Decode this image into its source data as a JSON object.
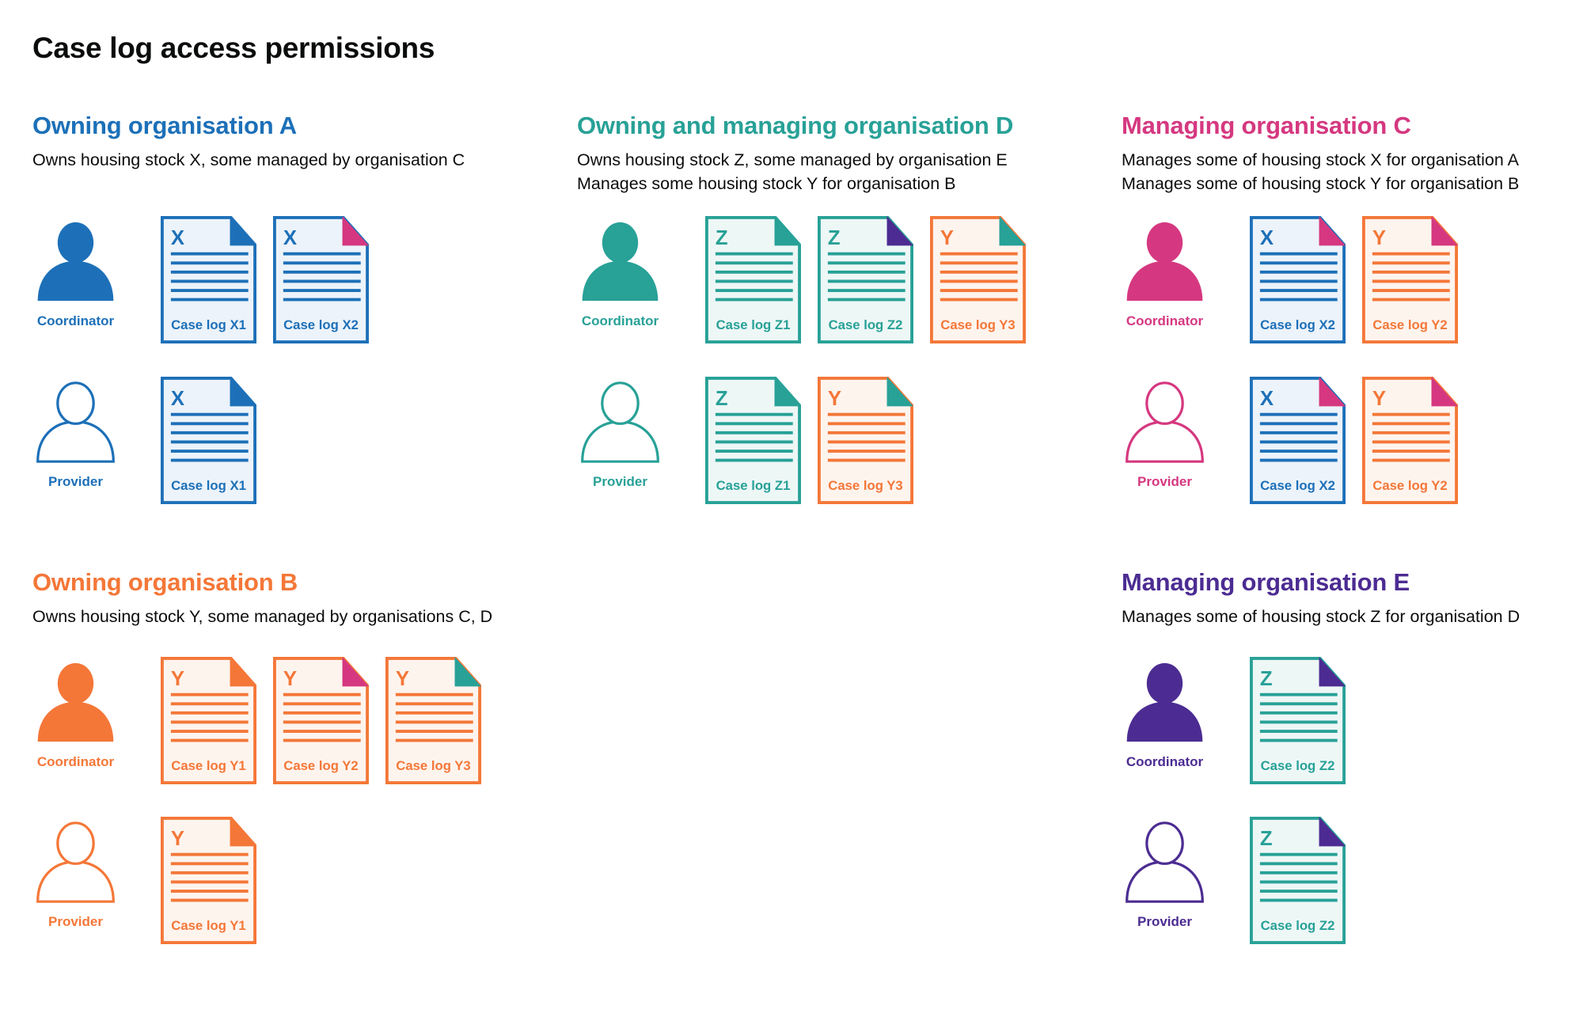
{
  "title": "Case log access permissions",
  "colors": {
    "blue": "#1d70b8",
    "teal": "#28a197",
    "pink": "#d53880",
    "orange": "#f47738",
    "purple": "#4c2c92"
  },
  "tints": {
    "blue": "#ecf3fa",
    "teal": "#edf7f6",
    "pink": "#fbeff5",
    "orange": "#fef4ee",
    "purple": "#f1eef8"
  },
  "sections": [
    {
      "heading": "Owning organisation A",
      "color": "blue",
      "description": [
        "Owns housing stock X, some managed by organisation C"
      ],
      "roles": [
        {
          "label": "Coordinator",
          "filled": true,
          "docs": [
            {
              "letter": "X",
              "label": "Case log X1",
              "color": "blue",
              "fold": "blue"
            },
            {
              "letter": "X",
              "label": "Case log X2",
              "color": "blue",
              "fold": "pink"
            }
          ]
        },
        {
          "label": "Provider",
          "filled": false,
          "docs": [
            {
              "letter": "X",
              "label": "Case log X1",
              "color": "blue",
              "fold": "blue"
            }
          ]
        }
      ]
    },
    {
      "heading": "Owning and managing organisation D",
      "color": "teal",
      "description": [
        "Owns housing stock Z, some managed by organisation E",
        "Manages some housing stock Y for organisation B"
      ],
      "roles": [
        {
          "label": "Coordinator",
          "filled": true,
          "docs": [
            {
              "letter": "Z",
              "label": "Case log Z1",
              "color": "teal",
              "fold": "teal"
            },
            {
              "letter": "Z",
              "label": "Case log Z2",
              "color": "teal",
              "fold": "purple"
            },
            {
              "letter": "Y",
              "label": "Case log Y3",
              "color": "orange",
              "fold": "teal"
            }
          ]
        },
        {
          "label": "Provider",
          "filled": false,
          "docs": [
            {
              "letter": "Z",
              "label": "Case log Z1",
              "color": "teal",
              "fold": "teal"
            },
            {
              "letter": "Y",
              "label": "Case log Y3",
              "color": "orange",
              "fold": "teal"
            }
          ]
        }
      ]
    },
    {
      "heading": "Managing organisation C",
      "color": "pink",
      "description": [
        "Manages some of housing stock X for organisation A",
        "Manages some of housing stock Y for organisation B"
      ],
      "roles": [
        {
          "label": "Coordinator",
          "filled": true,
          "docs": [
            {
              "letter": "X",
              "label": "Case log X2",
              "color": "blue",
              "fold": "pink"
            },
            {
              "letter": "Y",
              "label": "Case log Y2",
              "color": "orange",
              "fold": "pink"
            }
          ]
        },
        {
          "label": "Provider",
          "filled": false,
          "docs": [
            {
              "letter": "X",
              "label": "Case log X2",
              "color": "blue",
              "fold": "pink"
            },
            {
              "letter": "Y",
              "label": "Case log Y2",
              "color": "orange",
              "fold": "pink"
            }
          ]
        }
      ]
    },
    {
      "heading": "Owning organisation B",
      "color": "orange",
      "description": [
        "Owns housing stock Y, some managed by organisations C, D"
      ],
      "roles": [
        {
          "label": "Coordinator",
          "filled": true,
          "docs": [
            {
              "letter": "Y",
              "label": "Case log Y1",
              "color": "orange",
              "fold": "orange"
            },
            {
              "letter": "Y",
              "label": "Case log Y2",
              "color": "orange",
              "fold": "pink"
            },
            {
              "letter": "Y",
              "label": "Case log Y3",
              "color": "orange",
              "fold": "teal"
            }
          ]
        },
        {
          "label": "Provider",
          "filled": false,
          "docs": [
            {
              "letter": "Y",
              "label": "Case log Y1",
              "color": "orange",
              "fold": "orange"
            }
          ]
        }
      ]
    },
    {
      "heading": "Managing organisation E",
      "color": "purple",
      "description": [
        "Manages some of housing stock Z for organisation D"
      ],
      "roles": [
        {
          "label": "Coordinator",
          "filled": true,
          "docs": [
            {
              "letter": "Z",
              "label": "Case log Z2",
              "color": "teal",
              "fold": "purple"
            }
          ]
        },
        {
          "label": "Provider",
          "filled": false,
          "docs": [
            {
              "letter": "Z",
              "label": "Case log Z2",
              "color": "teal",
              "fold": "purple"
            }
          ]
        }
      ]
    }
  ]
}
